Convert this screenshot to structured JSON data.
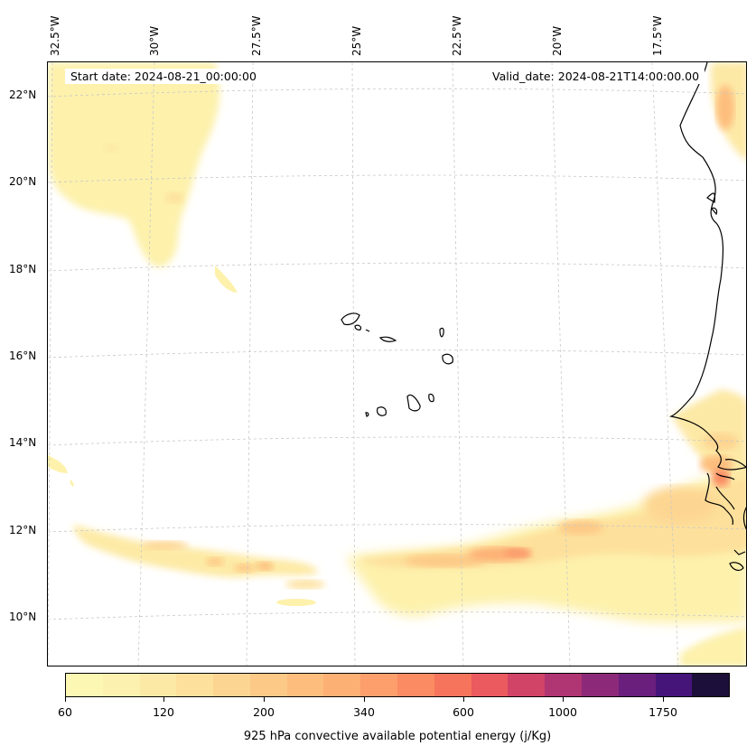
{
  "map": {
    "lon_labels": [
      "32.5°W",
      "30°W",
      "27.5°W",
      "25°W",
      "22.5°W",
      "20°W",
      "17.5°W"
    ],
    "lat_labels": [
      "22°N",
      "20°N",
      "18°N",
      "16°N",
      "14°N",
      "12°N",
      "10°N"
    ],
    "start_date": "Start date: 2024-08-21_00:00:00",
    "valid_date": "Valid_date: 2024-08-21T14:00:00.00"
  },
  "colorbar": {
    "tick_labels": [
      "60",
      "120",
      "200",
      "340",
      "600",
      "1000",
      "1750"
    ],
    "title": "925 hPa convective available potential energy (j/Kg)",
    "colors": [
      "#fcf8b4",
      "#fcf1ae",
      "#fde9a6",
      "#fde09b",
      "#fdd592",
      "#fdc986",
      "#fdbd7d",
      "#fdb074",
      "#fd9f6c",
      "#fb8b62",
      "#f6745c",
      "#ea5a5f",
      "#d14468",
      "#b03573",
      "#8c2a79",
      "#6a1f7c",
      "#45157a",
      "#1c0f3a"
    ]
  },
  "colors": {
    "cape_light": "#fdf1ac",
    "cape_mid": "#fdd592",
    "cape_high": "#fba070",
    "coastline": "#000000",
    "gridline": "#c8c8c8"
  }
}
